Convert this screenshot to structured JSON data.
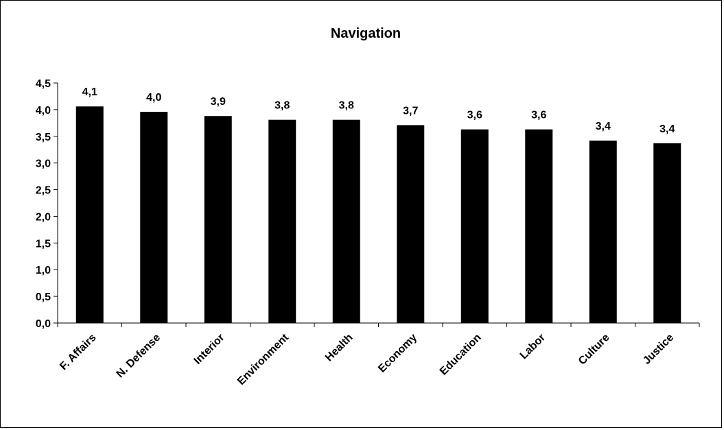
{
  "chart_data": {
    "type": "bar",
    "title": "Navigation",
    "xlabel": "",
    "ylabel": "",
    "categories": [
      "F. Affairs",
      "N. Defense",
      "Interior",
      "Environment",
      "Health",
      "Economy",
      "Education",
      "Labor",
      "Culture",
      "Justice"
    ],
    "values": [
      4.06,
      3.96,
      3.88,
      3.81,
      3.81,
      3.71,
      3.63,
      3.63,
      3.42,
      3.37
    ],
    "value_labels": [
      "4,1",
      "4,0",
      "3,9",
      "3,8",
      "3,8",
      "3,7",
      "3,6",
      "3,6",
      "3,4",
      "3,4"
    ],
    "ylim": [
      0,
      4.5
    ],
    "y_ticks": [
      {
        "value": 0,
        "label": "0,0"
      },
      {
        "value": 0.5,
        "label": "0,5"
      },
      {
        "value": 1.0,
        "label": "1,0"
      },
      {
        "value": 1.5,
        "label": "1,5"
      },
      {
        "value": 2.0,
        "label": "2,0"
      },
      {
        "value": 2.5,
        "label": "2,5"
      },
      {
        "value": 3.0,
        "label": "3,0"
      },
      {
        "value": 3.5,
        "label": "3,5"
      },
      {
        "value": 4.0,
        "label": "4,0"
      },
      {
        "value": 4.5,
        "label": "4,5"
      }
    ],
    "grid": false,
    "legend": "none",
    "bar_color": "#000000"
  }
}
